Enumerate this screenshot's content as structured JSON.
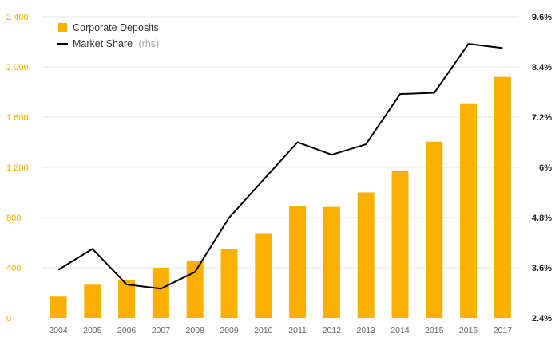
{
  "chart_data": {
    "type": "bar+line",
    "categories": [
      "2004",
      "2005",
      "2006",
      "2007",
      "2008",
      "2009",
      "2010",
      "2011",
      "2012",
      "2013",
      "2014",
      "2015",
      "2016",
      "2017"
    ],
    "series": [
      {
        "name": "Corporate Deposits",
        "axis": "left",
        "kind": "bar",
        "values": [
          170,
          265,
          305,
          400,
          455,
          550,
          670,
          890,
          885,
          1000,
          1175,
          1405,
          1710,
          1920
        ]
      },
      {
        "name": "Market Share",
        "suffix": "(rhs)",
        "axis": "right",
        "kind": "line",
        "values": [
          3.55,
          4.05,
          3.2,
          3.1,
          3.5,
          4.8,
          5.7,
          6.6,
          6.3,
          6.55,
          7.75,
          7.78,
          8.95,
          8.85
        ]
      }
    ],
    "y_left": {
      "min": 0,
      "max": 2400,
      "ticks": [
        "0",
        "400",
        "800",
        "1 200",
        "1 600",
        "2 000",
        "2 400"
      ],
      "tick_values": [
        0,
        400,
        800,
        1200,
        1600,
        2000,
        2400
      ]
    },
    "y_right": {
      "min": 2.4,
      "max": 9.6,
      "ticks": [
        "2.4%",
        "3.6%",
        "4.8%",
        "6%",
        "7.2%",
        "8.4%",
        "9.6%"
      ],
      "tick_values": [
        2.4,
        3.6,
        4.8,
        6.0,
        7.2,
        8.4,
        9.6
      ]
    },
    "legend": {
      "position": "top-left",
      "items": [
        {
          "label": "Corporate Deposits",
          "suffix": ""
        },
        {
          "label": "Market Share",
          "suffix": "(rhs)"
        }
      ]
    },
    "grid": true,
    "colors": {
      "bar": "#f9b000",
      "line": "#000000",
      "left_tick": "#f2a900",
      "grid": "#e6e6e6"
    }
  }
}
